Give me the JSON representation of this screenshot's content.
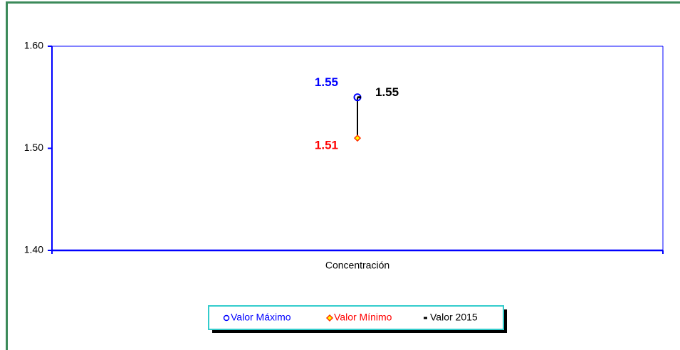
{
  "chart_data": {
    "type": "line",
    "categories": [
      "Concentración"
    ],
    "series": [
      {
        "name": "Valor Máximo",
        "color": "#0000ff",
        "values": [
          1.55
        ]
      },
      {
        "name": "Valor Mínimo",
        "color": "#ff0000",
        "values": [
          1.51
        ]
      },
      {
        "name": "Valor 2015",
        "color": "#000000",
        "values": [
          1.55
        ]
      }
    ],
    "ylim": [
      1.4,
      1.6
    ],
    "yticks": [
      {
        "value": 1.4,
        "label": "1.40"
      },
      {
        "value": 1.5,
        "label": "1.50"
      },
      {
        "value": 1.6,
        "label": "1.60"
      }
    ],
    "axis_color": "#0000ff"
  }
}
